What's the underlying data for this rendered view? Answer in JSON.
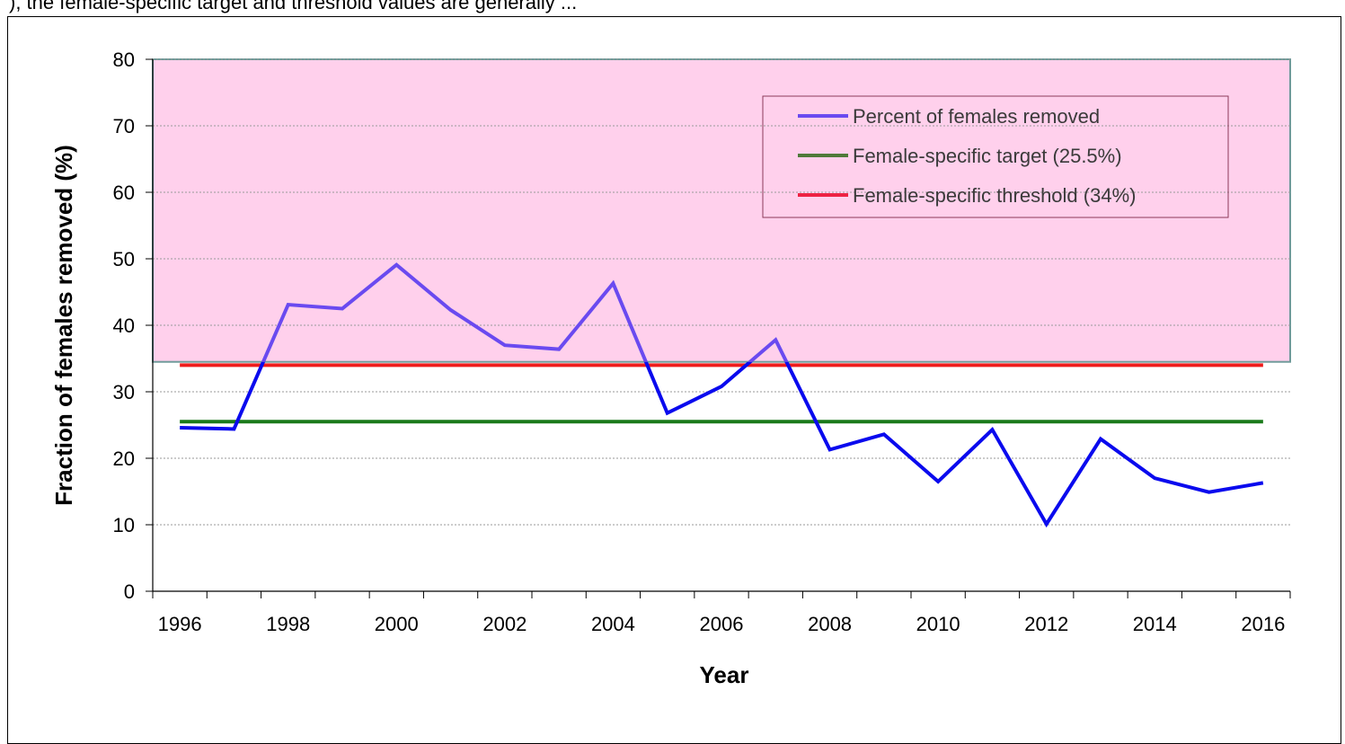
{
  "header": {
    "text": "), the female-specific target and threshold values are generally ..."
  },
  "chart_data": {
    "type": "line",
    "title": "",
    "xlabel": "Year",
    "ylabel": "Fraction of females removed (%)",
    "xlim": [
      1995.5,
      2016.5
    ],
    "ylim": [
      0,
      80
    ],
    "yticks": [
      0,
      10,
      20,
      30,
      40,
      50,
      60,
      70,
      80
    ],
    "xticks": [
      1996,
      1998,
      2000,
      2002,
      2004,
      2006,
      2008,
      2010,
      2012,
      2014,
      2016
    ],
    "grid": true,
    "legend_position": "top-right",
    "shaded_region": {
      "y_from": 34.5,
      "y_to": 80,
      "color": "#ffd0ec"
    },
    "series": [
      {
        "name": "Percent of females removed",
        "color_above_threshold": "#6a4af0",
        "color": "#0a0aee",
        "x": [
          1996,
          1997,
          1998,
          1999,
          2000,
          2001,
          2002,
          2003,
          2004,
          2005,
          2006,
          2007,
          2008,
          2009,
          2010,
          2011,
          2012,
          2013,
          2014,
          2015,
          2016
        ],
        "values": [
          24.6,
          24.4,
          43.1,
          42.5,
          49.1,
          42.3,
          37.0,
          36.4,
          46.3,
          26.8,
          30.8,
          37.8,
          21.3,
          23.6,
          16.5,
          24.3,
          10.1,
          22.9,
          17.0,
          14.9,
          16.3
        ]
      },
      {
        "name": "Female-specific target (25.5%)",
        "color": "#1a7a1a",
        "legend_color": "#4f7a3a",
        "x": [
          1996,
          2016
        ],
        "values": [
          25.5,
          25.5
        ]
      },
      {
        "name": "Female-specific threshold (34%)",
        "color": "#ee1c1c",
        "legend_color": "#ee2244",
        "x": [
          1996,
          2016
        ],
        "values": [
          34,
          34
        ]
      }
    ]
  }
}
